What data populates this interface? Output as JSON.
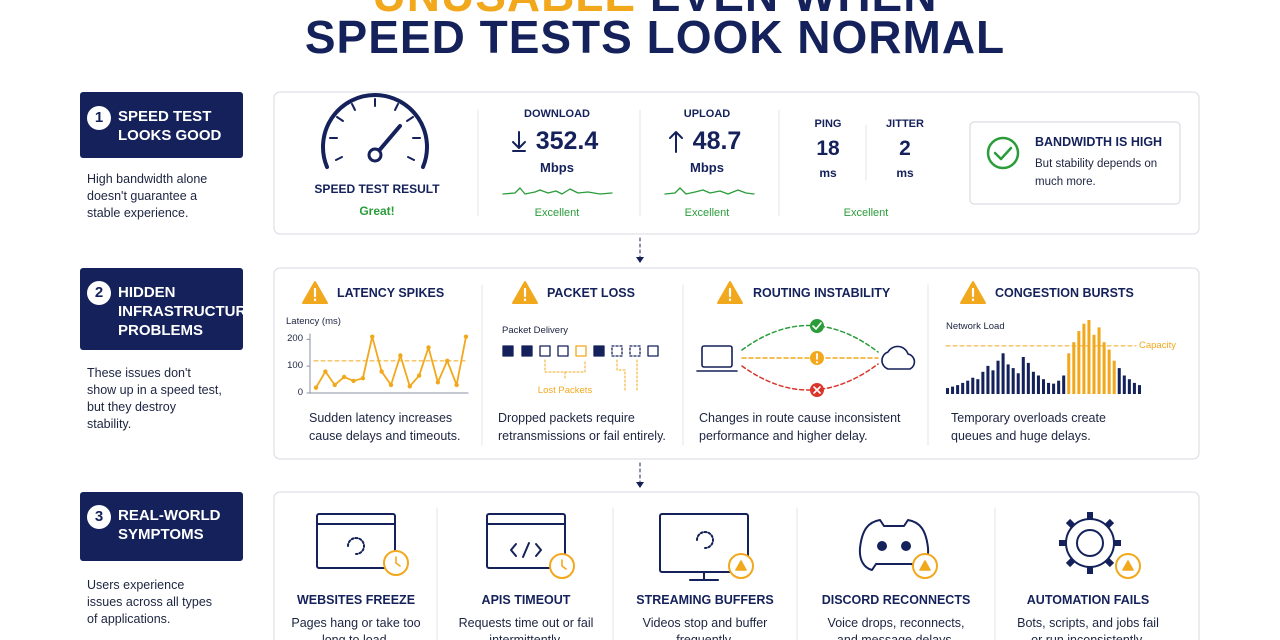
{
  "header": {
    "title_line1_highlight": "UNUSABLE",
    "title_line1_rest": "EVEN WHEN",
    "title_line2": "SPEED TESTS LOOK NORMAL"
  },
  "steps": [
    {
      "number": 1,
      "title": "SPEED TEST LOOKS GOOD",
      "description": "High bandwidth alone doesn't guarantee a stable experience."
    },
    {
      "number": 2,
      "title": "HIDDEN INFRASTRUCTURE PROBLEMS",
      "description": "These issues don't show up in a speed test, but they destroy stability."
    },
    {
      "number": 3,
      "title": "REAL-WORLD SYMPTOMS",
      "description": "Users experience issues across all types of applications."
    }
  ],
  "speed_test": {
    "gauge_label": "SPEED TEST RESULT",
    "gauge_status": "Great!",
    "download": {
      "label": "DOWNLOAD",
      "value": 352.4,
      "unit": "Mbps",
      "rating": "Excellent"
    },
    "upload": {
      "label": "UPLOAD",
      "value": 48.7,
      "unit": "Mbps",
      "rating": "Excellent"
    },
    "ping": {
      "label": "PING",
      "value": 18,
      "unit": "ms"
    },
    "jitter": {
      "label": "JITTER",
      "value": 2,
      "unit": "ms"
    },
    "ping_jitter_rating": "Excellent",
    "callout": {
      "title": "BANDWIDTH IS HIGH",
      "text": "But stability depends on much more."
    }
  },
  "issues": [
    {
      "title": "LATENCY SPIKES",
      "description": "Sudden latency increases cause delays and timeouts.",
      "chart": {
        "type": "line",
        "y_label": "Latency (ms)",
        "color": "#f2a81d",
        "values": [
          20,
          80,
          30,
          60,
          45,
          55,
          210,
          80,
          30,
          140,
          25,
          65,
          170,
          40,
          120,
          30,
          210
        ],
        "threshold": 120,
        "ylim": [
          0,
          220
        ],
        "yticks": [
          0,
          100,
          200
        ]
      }
    },
    {
      "title": "PACKET LOSS",
      "diagram_label": "Packet Delivery",
      "diagram_note": "Lost Packets",
      "description": "Dropped packets require retransmissions or fail entirely."
    },
    {
      "title": "ROUTING INSTABILITY",
      "description": "Changes in route cause inconsistent performance and higher delay."
    },
    {
      "title": "CONGESTION BURSTS",
      "description": "Temporary overloads create queues and huge delays.",
      "chart": {
        "type": "bar",
        "y_label": "Network Load",
        "reference_label": "Capacity",
        "capacity": 65,
        "color": "#14215a",
        "burst_color": "#f2a81d",
        "burst_indices": [
          24,
          33
        ],
        "ylim": [
          0,
          100
        ],
        "values": [
          8,
          10,
          12,
          15,
          18,
          22,
          20,
          30,
          38,
          32,
          45,
          55,
          40,
          35,
          28,
          50,
          42,
          30,
          25,
          20,
          15,
          14,
          18,
          25,
          55,
          70,
          85,
          95,
          100,
          80,
          90,
          70,
          60,
          45,
          35,
          25,
          20,
          15,
          12
        ]
      }
    }
  ],
  "symptoms": [
    {
      "title": "WEBSITES FREEZE",
      "description": "Pages hang or take too long to load."
    },
    {
      "title": "APIS TIMEOUT",
      "description": "Requests time out or fail intermittently."
    },
    {
      "title": "STREAMING BUFFERS",
      "description": "Videos stop and buffer frequently."
    },
    {
      "title": "DISCORD RECONNECTS",
      "description": "Voice drops, reconnects, and message delays."
    },
    {
      "title": "AUTOMATION FAILS",
      "description": "Bots, scripts, and jobs fail or run inconsistently."
    }
  ]
}
